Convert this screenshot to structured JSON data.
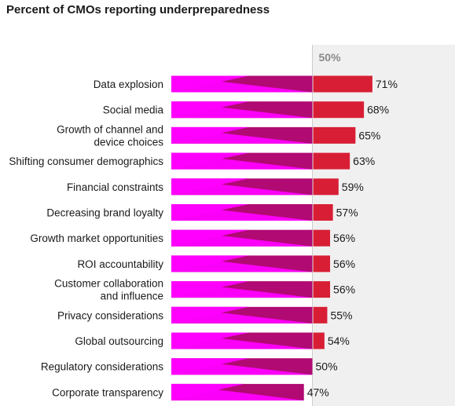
{
  "chart_data": {
    "type": "bar",
    "orientation": "horizontal",
    "title": "Percent of CMOs reporting underpreparedness",
    "xlabel": "",
    "ylabel": "",
    "xlim": [
      0,
      80
    ],
    "grid": false,
    "reference": {
      "value": 50,
      "label": "50%"
    },
    "categories": [
      "Data explosion",
      "Social media",
      "Growth of channel and\ndevice choices",
      "Shifting consumer demographics",
      "Financial constraints",
      "Decreasing brand loyalty",
      "Growth market opportunities",
      "ROI accountability",
      "Customer collaboration\nand influence",
      "Privacy considerations",
      "Global outsourcing",
      "Regulatory considerations",
      "Corporate transparency"
    ],
    "values": [
      71,
      68,
      65,
      63,
      59,
      57,
      56,
      56,
      56,
      55,
      54,
      50,
      47
    ],
    "value_labels": [
      "71%",
      "68%",
      "65%",
      "63%",
      "59%",
      "57%",
      "56%",
      "56%",
      "56%",
      "55%",
      "54%",
      "50%",
      "47%"
    ],
    "colors": {
      "bar_light": "#ff00ff",
      "bar_dark": "#b10a73",
      "above_reference": "#d81e35",
      "reference_band": "#f0f0f0",
      "reference_line": "#cccccc"
    }
  }
}
